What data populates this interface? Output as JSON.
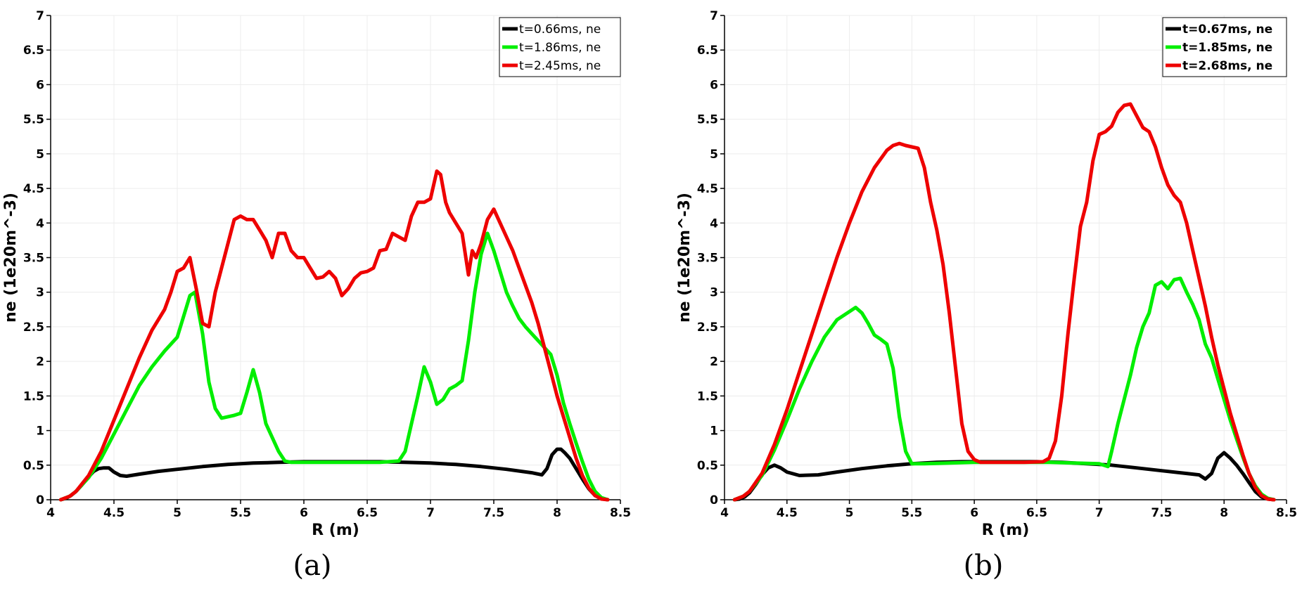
{
  "figure": {
    "panels": [
      {
        "caption": "(a)"
      },
      {
        "caption": "(b)"
      }
    ]
  },
  "chart_data": [
    {
      "type": "line",
      "caption": "(a)",
      "xlabel": "R (m)",
      "ylabel": "ne (1e20m^-3)",
      "xlim": [
        4,
        8.5
      ],
      "ylim": [
        0,
        7
      ],
      "xticks": [
        4,
        4.5,
        5,
        5.5,
        6,
        6.5,
        7,
        7.5,
        8,
        8.5
      ],
      "xtick_labels": [
        "4",
        "4.5",
        "5",
        "5.5",
        "6",
        "6.5",
        "7",
        "7.5",
        "8",
        "8.5"
      ],
      "yticks": [
        0,
        0.5,
        1,
        1.5,
        2,
        2.5,
        3,
        3.5,
        4,
        4.5,
        5,
        5.5,
        6,
        6.5,
        7
      ],
      "ytick_labels": [
        "0",
        "0.5",
        "1",
        "1.5",
        "2",
        "2.5",
        "3",
        "3.5",
        "4",
        "4.5",
        "5",
        "5.5",
        "6",
        "6.5",
        "7"
      ],
      "grid": true,
      "legend_position": "top-right",
      "series": [
        {
          "name": "t=0.66ms, ne",
          "color": "#000000",
          "x": [
            4.08,
            4.12,
            4.16,
            4.2,
            4.25,
            4.3,
            4.34,
            4.38,
            4.42,
            4.46,
            4.5,
            4.55,
            4.6,
            4.7,
            4.85,
            5.0,
            5.2,
            5.4,
            5.6,
            5.8,
            6.0,
            6.2,
            6.4,
            6.6,
            6.8,
            7.0,
            7.2,
            7.4,
            7.6,
            7.8,
            7.88,
            7.92,
            7.96,
            8.0,
            8.03,
            8.06,
            8.1,
            8.15,
            8.2,
            8.25,
            8.3,
            8.35,
            8.4
          ],
          "y": [
            0,
            0.02,
            0.06,
            0.12,
            0.22,
            0.33,
            0.41,
            0.45,
            0.46,
            0.46,
            0.4,
            0.35,
            0.34,
            0.37,
            0.41,
            0.44,
            0.48,
            0.51,
            0.53,
            0.54,
            0.55,
            0.55,
            0.55,
            0.55,
            0.54,
            0.53,
            0.51,
            0.48,
            0.44,
            0.39,
            0.36,
            0.45,
            0.65,
            0.73,
            0.73,
            0.68,
            0.6,
            0.45,
            0.3,
            0.16,
            0.06,
            0.02,
            0
          ]
        },
        {
          "name": "t=1.86ms, ne",
          "color": "#00ee00",
          "x": [
            4.08,
            4.15,
            4.2,
            4.3,
            4.4,
            4.5,
            4.6,
            4.7,
            4.8,
            4.9,
            5.0,
            5.05,
            5.1,
            5.14,
            5.2,
            5.25,
            5.3,
            5.35,
            5.4,
            5.45,
            5.5,
            5.55,
            5.6,
            5.65,
            5.7,
            5.8,
            5.85,
            5.9,
            6.0,
            6.2,
            6.4,
            6.6,
            6.75,
            6.8,
            6.85,
            6.9,
            6.95,
            7.0,
            7.05,
            7.1,
            7.15,
            7.2,
            7.25,
            7.3,
            7.35,
            7.4,
            7.45,
            7.5,
            7.55,
            7.6,
            7.65,
            7.7,
            7.75,
            7.8,
            7.85,
            7.9,
            7.95,
            8.0,
            8.05,
            8.1,
            8.15,
            8.2,
            8.25,
            8.3,
            8.35,
            8.4
          ],
          "y": [
            0,
            0.05,
            0.12,
            0.32,
            0.6,
            0.95,
            1.3,
            1.65,
            1.92,
            2.15,
            2.35,
            2.65,
            2.95,
            3.0,
            2.4,
            1.7,
            1.32,
            1.18,
            1.2,
            1.22,
            1.25,
            1.55,
            1.88,
            1.55,
            1.1,
            0.7,
            0.56,
            0.54,
            0.54,
            0.54,
            0.54,
            0.54,
            0.56,
            0.7,
            1.1,
            1.5,
            1.92,
            1.7,
            1.38,
            1.45,
            1.6,
            1.65,
            1.72,
            2.3,
            3.0,
            3.55,
            3.85,
            3.6,
            3.3,
            3.0,
            2.8,
            2.62,
            2.5,
            2.4,
            2.3,
            2.2,
            2.1,
            1.8,
            1.4,
            1.1,
            0.82,
            0.55,
            0.3,
            0.12,
            0.03,
            0
          ]
        },
        {
          "name": "t=2.45ms, ne",
          "color": "#ee0000",
          "x": [
            4.08,
            4.15,
            4.2,
            4.3,
            4.4,
            4.5,
            4.6,
            4.7,
            4.8,
            4.9,
            4.95,
            5.0,
            5.05,
            5.1,
            5.15,
            5.2,
            5.25,
            5.3,
            5.35,
            5.4,
            5.45,
            5.5,
            5.55,
            5.6,
            5.65,
            5.7,
            5.75,
            5.8,
            5.85,
            5.9,
            5.95,
            6.0,
            6.05,
            6.1,
            6.15,
            6.2,
            6.25,
            6.3,
            6.35,
            6.4,
            6.45,
            6.5,
            6.55,
            6.6,
            6.65,
            6.7,
            6.75,
            6.8,
            6.85,
            6.9,
            6.95,
            7.0,
            7.05,
            7.08,
            7.12,
            7.15,
            7.2,
            7.25,
            7.3,
            7.33,
            7.36,
            7.4,
            7.45,
            7.5,
            7.55,
            7.6,
            7.65,
            7.7,
            7.75,
            7.8,
            7.85,
            7.9,
            7.95,
            8.0,
            8.05,
            8.1,
            8.15,
            8.2,
            8.25,
            8.3,
            8.35,
            8.4
          ],
          "y": [
            0,
            0.05,
            0.12,
            0.35,
            0.7,
            1.15,
            1.6,
            2.05,
            2.45,
            2.75,
            3.0,
            3.3,
            3.35,
            3.5,
            3.05,
            2.55,
            2.5,
            3.0,
            3.35,
            3.7,
            4.05,
            4.1,
            4.05,
            4.05,
            3.9,
            3.75,
            3.5,
            3.85,
            3.85,
            3.6,
            3.5,
            3.5,
            3.35,
            3.2,
            3.22,
            3.3,
            3.2,
            2.95,
            3.05,
            3.2,
            3.28,
            3.3,
            3.35,
            3.6,
            3.62,
            3.85,
            3.8,
            3.75,
            4.1,
            4.3,
            4.3,
            4.35,
            4.75,
            4.7,
            4.3,
            4.15,
            4.0,
            3.85,
            3.25,
            3.6,
            3.5,
            3.7,
            4.05,
            4.2,
            4.0,
            3.8,
            3.6,
            3.35,
            3.1,
            2.85,
            2.55,
            2.2,
            1.85,
            1.5,
            1.2,
            0.9,
            0.6,
            0.35,
            0.17,
            0.06,
            0.01,
            0
          ]
        }
      ]
    },
    {
      "type": "line",
      "caption": "(b)",
      "xlabel": "R (m)",
      "ylabel": "ne (1e20m^-3)",
      "xlim": [
        4,
        8.5
      ],
      "ylim": [
        0,
        7
      ],
      "xticks": [
        4,
        4.5,
        5,
        5.5,
        6,
        6.5,
        7,
        7.5,
        8,
        8.5
      ],
      "xtick_labels": [
        "4",
        "4.5",
        "5",
        "5.5",
        "6",
        "6.5",
        "7",
        "7.5",
        "8",
        "8.5"
      ],
      "yticks": [
        0,
        0.5,
        1,
        1.5,
        2,
        2.5,
        3,
        3.5,
        4,
        4.5,
        5,
        5.5,
        6,
        6.5,
        7
      ],
      "ytick_labels": [
        "0",
        "0.5",
        "1",
        "1.5",
        "2",
        "2.5",
        "3",
        "3.5",
        "4",
        "4.5",
        "5",
        "5.5",
        "6",
        "6.5",
        "7"
      ],
      "grid": true,
      "legend_position": "top-right",
      "series": [
        {
          "name": "t=0.67ms, ne",
          "color": "#000000",
          "x": [
            4.08,
            4.12,
            4.16,
            4.2,
            4.25,
            4.3,
            4.35,
            4.4,
            4.45,
            4.5,
            4.6,
            4.75,
            4.9,
            5.1,
            5.3,
            5.5,
            5.7,
            5.9,
            6.1,
            6.3,
            6.5,
            6.7,
            6.9,
            7.1,
            7.3,
            7.5,
            7.7,
            7.8,
            7.85,
            7.9,
            7.95,
            8.0,
            8.05,
            8.1,
            8.15,
            8.2,
            8.25,
            8.3,
            8.35,
            8.4
          ],
          "y": [
            0,
            0.01,
            0.04,
            0.1,
            0.22,
            0.36,
            0.46,
            0.5,
            0.46,
            0.4,
            0.35,
            0.36,
            0.4,
            0.45,
            0.49,
            0.52,
            0.54,
            0.55,
            0.55,
            0.55,
            0.55,
            0.54,
            0.52,
            0.5,
            0.46,
            0.42,
            0.38,
            0.36,
            0.3,
            0.38,
            0.6,
            0.68,
            0.6,
            0.5,
            0.38,
            0.25,
            0.12,
            0.04,
            0.01,
            0
          ]
        },
        {
          "name": "t=1.85ms, ne",
          "color": "#00ee00",
          "x": [
            4.08,
            4.15,
            4.2,
            4.3,
            4.4,
            4.5,
            4.6,
            4.7,
            4.8,
            4.9,
            5.0,
            5.05,
            5.1,
            5.15,
            5.2,
            5.25,
            5.3,
            5.35,
            5.4,
            5.45,
            5.5,
            5.55,
            5.6,
            5.8,
            6.0,
            6.2,
            6.4,
            6.6,
            6.8,
            7.0,
            7.07,
            7.1,
            7.15,
            7.2,
            7.25,
            7.3,
            7.35,
            7.4,
            7.45,
            7.5,
            7.55,
            7.6,
            7.65,
            7.7,
            7.75,
            7.8,
            7.85,
            7.9,
            7.95,
            8.0,
            8.05,
            8.1,
            8.15,
            8.2,
            8.25,
            8.3,
            8.35,
            8.4
          ],
          "y": [
            0,
            0.05,
            0.12,
            0.35,
            0.72,
            1.15,
            1.6,
            2.0,
            2.35,
            2.6,
            2.72,
            2.78,
            2.7,
            2.55,
            2.38,
            2.32,
            2.25,
            1.9,
            1.2,
            0.7,
            0.52,
            0.52,
            0.52,
            0.53,
            0.54,
            0.54,
            0.54,
            0.54,
            0.53,
            0.52,
            0.48,
            0.7,
            1.1,
            1.45,
            1.8,
            2.2,
            2.5,
            2.7,
            3.1,
            3.15,
            3.05,
            3.18,
            3.2,
            3.0,
            2.82,
            2.6,
            2.25,
            2.05,
            1.75,
            1.45,
            1.15,
            0.88,
            0.62,
            0.38,
            0.2,
            0.08,
            0.02,
            0
          ]
        },
        {
          "name": "t=2.68ms, ne",
          "color": "#ee0000",
          "x": [
            4.08,
            4.15,
            4.2,
            4.3,
            4.4,
            4.5,
            4.6,
            4.7,
            4.8,
            4.9,
            5.0,
            5.1,
            5.2,
            5.3,
            5.35,
            5.4,
            5.45,
            5.5,
            5.55,
            5.6,
            5.65,
            5.7,
            5.75,
            5.8,
            5.85,
            5.9,
            5.95,
            6.0,
            6.05,
            6.1,
            6.2,
            6.4,
            6.55,
            6.6,
            6.65,
            6.7,
            6.75,
            6.8,
            6.85,
            6.9,
            6.95,
            7.0,
            7.05,
            7.1,
            7.15,
            7.2,
            7.25,
            7.3,
            7.35,
            7.4,
            7.45,
            7.5,
            7.55,
            7.6,
            7.65,
            7.7,
            7.75,
            7.8,
            7.85,
            7.9,
            7.95,
            8.0,
            8.05,
            8.1,
            8.15,
            8.2,
            8.25,
            8.3,
            8.35,
            8.4
          ],
          "y": [
            0,
            0.05,
            0.12,
            0.38,
            0.8,
            1.3,
            1.85,
            2.4,
            2.95,
            3.5,
            4.0,
            4.45,
            4.8,
            5.05,
            5.12,
            5.15,
            5.12,
            5.1,
            5.08,
            4.8,
            4.3,
            3.9,
            3.4,
            2.7,
            1.9,
            1.1,
            0.7,
            0.58,
            0.54,
            0.54,
            0.54,
            0.54,
            0.55,
            0.6,
            0.85,
            1.5,
            2.4,
            3.2,
            3.95,
            4.3,
            4.9,
            5.28,
            5.32,
            5.4,
            5.6,
            5.7,
            5.72,
            5.55,
            5.38,
            5.32,
            5.1,
            4.8,
            4.55,
            4.4,
            4.3,
            4.0,
            3.6,
            3.2,
            2.8,
            2.35,
            1.95,
            1.6,
            1.25,
            0.95,
            0.65,
            0.38,
            0.18,
            0.06,
            0.01,
            0
          ]
        }
      ]
    }
  ]
}
